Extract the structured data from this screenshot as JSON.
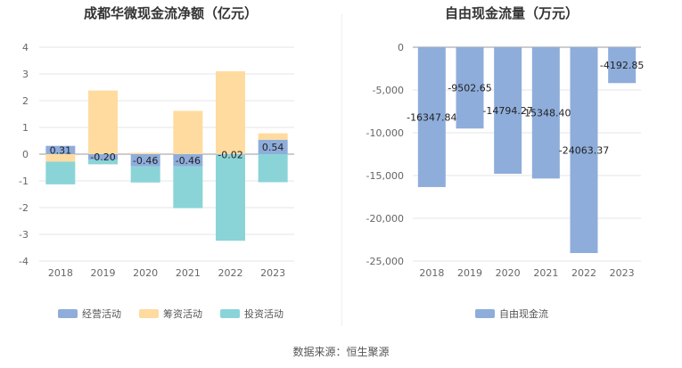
{
  "source": "数据来源：恒生聚源",
  "chart_data": [
    {
      "type": "bar",
      "stacked": true,
      "title": "成都华微现金流净额（亿元）",
      "categories": [
        "2018",
        "2019",
        "2020",
        "2021",
        "2022",
        "2023"
      ],
      "ylim": [
        -4,
        4
      ],
      "yticks": [
        4,
        3,
        2,
        1,
        0,
        -1,
        -2,
        -3,
        -4
      ],
      "grid": true,
      "legend_position": "bottom",
      "series": [
        {
          "name": "经营活动",
          "color": "#8eaddb",
          "values": [
            0.31,
            -0.2,
            -0.46,
            -0.46,
            -0.02,
            0.54
          ]
        },
        {
          "name": "筹资活动",
          "color": "#ffdba0",
          "values": [
            -0.28,
            2.38,
            0.05,
            1.62,
            3.1,
            0.24
          ]
        },
        {
          "name": "投资活动",
          "color": "#8ad4d8",
          "values": [
            -0.85,
            -0.18,
            -0.6,
            -1.56,
            -3.22,
            -1.05
          ]
        }
      ],
      "data_labels": [
        "0.31",
        "-0.20",
        "-0.46",
        "-0.46",
        "-0.02",
        "0.54"
      ]
    },
    {
      "type": "bar",
      "title": "自由现金流量（万元）",
      "categories": [
        "2018",
        "2019",
        "2020",
        "2021",
        "2022",
        "2023"
      ],
      "ylim": [
        -25000,
        0
      ],
      "yticks": [
        "0",
        "-5,000",
        "-10,000",
        "-15,000",
        "-20,000",
        "-25,000"
      ],
      "ytick_values": [
        0,
        -5000,
        -10000,
        -15000,
        -20000,
        -25000
      ],
      "grid": true,
      "legend_position": "bottom",
      "series": [
        {
          "name": "自由现金流",
          "color": "#8eaddb",
          "values": [
            -16347.84,
            -9502.65,
            -14794.27,
            -15348.4,
            -24063.37,
            -4192.85
          ]
        }
      ],
      "data_labels": [
        "-16347.84",
        "-9502.65",
        "-14794.27",
        "-15348.40",
        "-24063.37",
        "-4192.85"
      ]
    }
  ]
}
